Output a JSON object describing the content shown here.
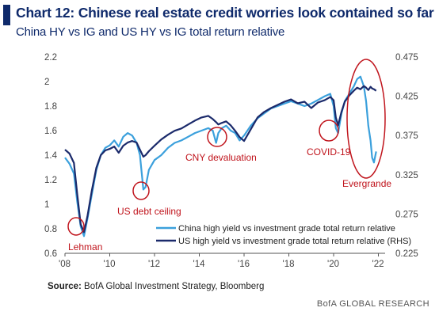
{
  "header": {
    "title": "Chart 12: Chinese real estate credit worries look contained so far",
    "subtitle": "China HY vs IG and US HY vs IG total return relative"
  },
  "footer": {
    "source_label": "Source:",
    "source_text": "BofA Global Investment Strategy, Bloomberg",
    "brand": "BofA GLOBAL RESEARCH"
  },
  "colors": {
    "china": "#3ba0dc",
    "us": "#1b2a6b",
    "annotation": "#c0141c",
    "title": "#0f2a6b"
  },
  "chart_data": {
    "type": "line",
    "x_range": [
      2008,
      2022.3
    ],
    "x_ticks": [
      2008,
      2010,
      2012,
      2014,
      2016,
      2018,
      2020,
      2022
    ],
    "x_tick_labels": [
      "'08",
      "'10",
      "'12",
      "'14",
      "'16",
      "'18",
      "'20",
      "'22"
    ],
    "y_left": {
      "range": [
        0.6,
        2.2
      ],
      "ticks": [
        "0.6",
        "0.8",
        "1",
        "1.2",
        "1.4",
        "1.6",
        "1.8",
        "2",
        "2.2"
      ]
    },
    "y_right": {
      "range": [
        0.225,
        0.475
      ],
      "ticks": [
        "0.225",
        "0.275",
        "0.325",
        "0.375",
        "0.425",
        "0.475"
      ]
    },
    "grid": false,
    "legend_placement": "bottom-right",
    "series": [
      {
        "name": "China high yield vs investment grade total return relative",
        "axis": "left",
        "points": [
          [
            2008.0,
            1.38
          ],
          [
            2008.2,
            1.33
          ],
          [
            2008.4,
            1.25
          ],
          [
            2008.55,
            1.02
          ],
          [
            2008.7,
            0.82
          ],
          [
            2008.85,
            0.74
          ],
          [
            2009.0,
            0.88
          ],
          [
            2009.2,
            1.08
          ],
          [
            2009.4,
            1.28
          ],
          [
            2009.6,
            1.4
          ],
          [
            2009.8,
            1.46
          ],
          [
            2010.0,
            1.48
          ],
          [
            2010.2,
            1.52
          ],
          [
            2010.4,
            1.47
          ],
          [
            2010.6,
            1.55
          ],
          [
            2010.8,
            1.58
          ],
          [
            2011.0,
            1.56
          ],
          [
            2011.2,
            1.5
          ],
          [
            2011.35,
            1.4
          ],
          [
            2011.5,
            1.12
          ],
          [
            2011.6,
            1.14
          ],
          [
            2011.75,
            1.28
          ],
          [
            2012.0,
            1.36
          ],
          [
            2012.3,
            1.4
          ],
          [
            2012.6,
            1.46
          ],
          [
            2012.9,
            1.5
          ],
          [
            2013.2,
            1.52
          ],
          [
            2013.5,
            1.55
          ],
          [
            2013.8,
            1.58
          ],
          [
            2014.1,
            1.6
          ],
          [
            2014.4,
            1.62
          ],
          [
            2014.6,
            1.6
          ],
          [
            2014.75,
            1.5
          ],
          [
            2014.85,
            1.58
          ],
          [
            2015.0,
            1.62
          ],
          [
            2015.2,
            1.64
          ],
          [
            2015.4,
            1.6
          ],
          [
            2015.6,
            1.58
          ],
          [
            2015.8,
            1.52
          ],
          [
            2016.0,
            1.56
          ],
          [
            2016.3,
            1.64
          ],
          [
            2016.6,
            1.7
          ],
          [
            2016.9,
            1.74
          ],
          [
            2017.2,
            1.78
          ],
          [
            2017.5,
            1.8
          ],
          [
            2017.8,
            1.82
          ],
          [
            2018.1,
            1.84
          ],
          [
            2018.4,
            1.82
          ],
          [
            2018.7,
            1.8
          ],
          [
            2019.0,
            1.82
          ],
          [
            2019.3,
            1.85
          ],
          [
            2019.6,
            1.88
          ],
          [
            2019.85,
            1.9
          ],
          [
            2020.0,
            1.8
          ],
          [
            2020.1,
            1.62
          ],
          [
            2020.2,
            1.58
          ],
          [
            2020.35,
            1.74
          ],
          [
            2020.5,
            1.84
          ],
          [
            2020.7,
            1.9
          ],
          [
            2020.9,
            1.96
          ],
          [
            2021.05,
            2.02
          ],
          [
            2021.2,
            2.04
          ],
          [
            2021.35,
            1.96
          ],
          [
            2021.45,
            1.84
          ],
          [
            2021.55,
            1.64
          ],
          [
            2021.65,
            1.52
          ],
          [
            2021.72,
            1.38
          ],
          [
            2021.8,
            1.34
          ],
          [
            2021.9,
            1.43
          ]
        ]
      },
      {
        "name": "US high yield vs investment grade total return relative (RHS)",
        "axis": "right",
        "points": [
          [
            2008.0,
            0.357
          ],
          [
            2008.2,
            0.352
          ],
          [
            2008.4,
            0.34
          ],
          [
            2008.55,
            0.3
          ],
          [
            2008.7,
            0.262
          ],
          [
            2008.85,
            0.252
          ],
          [
            2009.0,
            0.272
          ],
          [
            2009.2,
            0.305
          ],
          [
            2009.4,
            0.334
          ],
          [
            2009.6,
            0.35
          ],
          [
            2009.8,
            0.356
          ],
          [
            2010.0,
            0.358
          ],
          [
            2010.2,
            0.361
          ],
          [
            2010.4,
            0.353
          ],
          [
            2010.6,
            0.362
          ],
          [
            2010.8,
            0.366
          ],
          [
            2011.0,
            0.368
          ],
          [
            2011.2,
            0.366
          ],
          [
            2011.35,
            0.357
          ],
          [
            2011.5,
            0.348
          ],
          [
            2011.6,
            0.35
          ],
          [
            2011.75,
            0.355
          ],
          [
            2012.0,
            0.362
          ],
          [
            2012.3,
            0.37
          ],
          [
            2012.6,
            0.376
          ],
          [
            2012.9,
            0.381
          ],
          [
            2013.2,
            0.384
          ],
          [
            2013.5,
            0.389
          ],
          [
            2013.8,
            0.394
          ],
          [
            2014.1,
            0.398
          ],
          [
            2014.4,
            0.4
          ],
          [
            2014.6,
            0.396
          ],
          [
            2014.75,
            0.392
          ],
          [
            2014.85,
            0.389
          ],
          [
            2015.0,
            0.391
          ],
          [
            2015.2,
            0.393
          ],
          [
            2015.4,
            0.388
          ],
          [
            2015.6,
            0.381
          ],
          [
            2015.8,
            0.373
          ],
          [
            2016.0,
            0.368
          ],
          [
            2016.3,
            0.383
          ],
          [
            2016.6,
            0.398
          ],
          [
            2016.9,
            0.405
          ],
          [
            2017.2,
            0.41
          ],
          [
            2017.5,
            0.414
          ],
          [
            2017.8,
            0.418
          ],
          [
            2018.1,
            0.421
          ],
          [
            2018.4,
            0.416
          ],
          [
            2018.7,
            0.418
          ],
          [
            2019.0,
            0.41
          ],
          [
            2019.3,
            0.417
          ],
          [
            2019.6,
            0.42
          ],
          [
            2019.85,
            0.424
          ],
          [
            2020.0,
            0.42
          ],
          [
            2020.1,
            0.398
          ],
          [
            2020.2,
            0.388
          ],
          [
            2020.35,
            0.405
          ],
          [
            2020.5,
            0.418
          ],
          [
            2020.7,
            0.426
          ],
          [
            2020.9,
            0.432
          ],
          [
            2021.05,
            0.436
          ],
          [
            2021.2,
            0.434
          ],
          [
            2021.35,
            0.438
          ],
          [
            2021.45,
            0.436
          ],
          [
            2021.55,
            0.433
          ],
          [
            2021.65,
            0.437
          ],
          [
            2021.72,
            0.435
          ],
          [
            2021.8,
            0.434
          ],
          [
            2021.9,
            0.432
          ]
        ]
      }
    ],
    "annotations": [
      {
        "label": "Lehman",
        "x": 2008.8,
        "y": 0.78
      },
      {
        "label": "US debt ceiling",
        "x": 2011.5,
        "y": 1.12
      },
      {
        "label": "CNY devaluation",
        "x": 2014.8,
        "y": 1.55
      },
      {
        "label": "COVID-19",
        "x": 2020.15,
        "y": 1.6
      },
      {
        "label": "Evergrande",
        "x": 2021.7,
        "y": 1.55
      }
    ]
  }
}
